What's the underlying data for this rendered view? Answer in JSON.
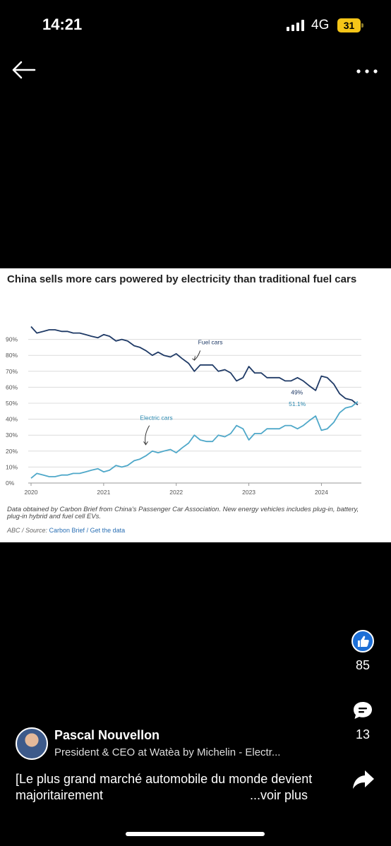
{
  "status_bar": {
    "time": "14:21",
    "network": "4G",
    "battery": "31"
  },
  "card": {
    "title": "China sells more cars powered by electricity than traditional fuel cars",
    "note": "Data obtained by Carbon Brief from China's Passenger Car Association. New energy vehicles includes plug-in, battery, plug-in hybrid and fuel cell EVs.",
    "source_prefix": "ABC / Source: ",
    "source_link": "Carbon Brief",
    "source_sep": " / ",
    "get_data": "Get the data"
  },
  "chart_data": {
    "type": "line",
    "title": "China sells more cars powered by electricity than traditional fuel cars",
    "xlabel": "",
    "ylabel": "",
    "ylim": [
      0,
      100
    ],
    "xlim": [
      2020.0,
      2024.55
    ],
    "yticks": [
      "0%",
      "10%",
      "20%",
      "30%",
      "40%",
      "50%",
      "60%",
      "70%",
      "80%",
      "90%"
    ],
    "xticks": [
      "2020",
      "2021",
      "2022",
      "2023",
      "2024"
    ],
    "grid": true,
    "series": [
      {
        "name": "Fuel cars",
        "color": "#1f3a66",
        "x": [
          2020.0,
          2020.08,
          2020.17,
          2020.25,
          2020.33,
          2020.42,
          2020.5,
          2020.58,
          2020.67,
          2020.75,
          2020.83,
          2020.92,
          2021.0,
          2021.08,
          2021.17,
          2021.25,
          2021.33,
          2021.42,
          2021.5,
          2021.58,
          2021.67,
          2021.75,
          2021.83,
          2021.92,
          2022.0,
          2022.08,
          2022.17,
          2022.25,
          2022.33,
          2022.42,
          2022.5,
          2022.58,
          2022.67,
          2022.75,
          2022.83,
          2022.92,
          2023.0,
          2023.08,
          2023.17,
          2023.25,
          2023.33,
          2023.42,
          2023.5,
          2023.58,
          2023.67,
          2023.75,
          2023.83,
          2023.92,
          2024.0,
          2024.08,
          2024.17,
          2024.25,
          2024.33,
          2024.42,
          2024.5
        ],
        "y": [
          98,
          94,
          95,
          96,
          96,
          95,
          95,
          94,
          94,
          93,
          92,
          91,
          93,
          92,
          89,
          90,
          89,
          86,
          85,
          83,
          80,
          82,
          80,
          79,
          81,
          78,
          75,
          70,
          74,
          74,
          74,
          70,
          71,
          69,
          64,
          66,
          73,
          69,
          69,
          66,
          66,
          66,
          64,
          64,
          66,
          64,
          61,
          58,
          67,
          66,
          62,
          56,
          53,
          52,
          49
        ]
      },
      {
        "name": "Electric cars",
        "color": "#4fa8c9",
        "x": [
          2020.0,
          2020.08,
          2020.17,
          2020.25,
          2020.33,
          2020.42,
          2020.5,
          2020.58,
          2020.67,
          2020.75,
          2020.83,
          2020.92,
          2021.0,
          2021.08,
          2021.17,
          2021.25,
          2021.33,
          2021.42,
          2021.5,
          2021.58,
          2021.67,
          2021.75,
          2021.83,
          2021.92,
          2022.0,
          2022.08,
          2022.17,
          2022.25,
          2022.33,
          2022.42,
          2022.5,
          2022.58,
          2022.67,
          2022.75,
          2022.83,
          2022.92,
          2023.0,
          2023.08,
          2023.17,
          2023.25,
          2023.33,
          2023.42,
          2023.5,
          2023.58,
          2023.67,
          2023.75,
          2023.83,
          2023.92,
          2024.0,
          2024.08,
          2024.17,
          2024.25,
          2024.33,
          2024.42,
          2024.5
        ],
        "y": [
          3,
          6,
          5,
          4,
          4,
          5,
          5,
          6,
          6,
          7,
          8,
          9,
          7,
          8,
          11,
          10,
          11,
          14,
          15,
          17,
          20,
          19,
          20,
          21,
          19,
          22,
          25,
          30,
          27,
          26,
          26,
          30,
          29,
          31,
          36,
          34,
          27,
          31,
          31,
          34,
          34,
          34,
          36,
          36,
          34,
          36,
          39,
          42,
          33,
          34,
          38,
          44,
          47,
          48,
          51
        ]
      }
    ],
    "annotations": [
      {
        "text": "Fuel cars",
        "series": "Fuel cars"
      },
      {
        "text": "Electric cars",
        "series": "Electric cars"
      },
      {
        "text": "49%",
        "series": "Fuel cars"
      },
      {
        "text": "51.1%",
        "series": "Electric cars"
      }
    ]
  },
  "actions": {
    "likes": "85",
    "comments": "13"
  },
  "post": {
    "author_name": "Pascal Nouvellon",
    "author_headline": "President & CEO at Watèa by Michelin - Electr...",
    "caption": "[Le plus grand marché automobile du monde devient majoritairement",
    "see_more": "...voir plus"
  },
  "colors": {
    "accent": "#1d6fd6",
    "card_bg": "#ffffff",
    "page_bg": "#000000"
  },
  "icons": [
    "back-arrow-icon",
    "more-options-icon",
    "like-icon",
    "comment-icon",
    "share-icon"
  ]
}
